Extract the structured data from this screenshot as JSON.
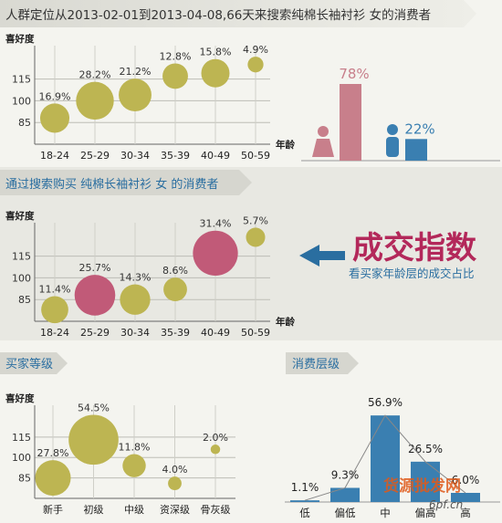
{
  "header1": {
    "title": "人群定位从2013-02-01到2013-04-08,66天来搜索纯棉长袖衬衫 女的消费者"
  },
  "header2": {
    "title": "通过搜索购买 纯棉长袖衬衫 女 的消费者"
  },
  "header3": {
    "title": "买家等级"
  },
  "header4": {
    "title": "消费层级"
  },
  "callout": {
    "title": "成交指数",
    "subtitle": "看买家年龄层的成交占比"
  },
  "watermark": {
    "line1": "货源批发网",
    "line2": "6pf.cn"
  },
  "chart_data": [
    {
      "type": "scatter",
      "name": "search-age",
      "ylabel": "喜好度",
      "xlabel": "年龄",
      "yticks": [
        "115",
        "100",
        "85"
      ],
      "categories": [
        "18-24",
        "25-29",
        "30-34",
        "35-39",
        "40-49",
        "50-59"
      ],
      "values": [
        16.9,
        28.2,
        21.2,
        12.8,
        15.8,
        4.9
      ],
      "labels": [
        "16.9%",
        "28.2%",
        "21.2%",
        "12.8%",
        "15.8%",
        "4.9%"
      ],
      "y": [
        88,
        100,
        104,
        117,
        119,
        125
      ],
      "ylim": [
        70,
        133
      ],
      "colors": [
        "#bdb552",
        "#bdb552",
        "#bdb552",
        "#bdb552",
        "#bdb552",
        "#bdb552"
      ]
    },
    {
      "type": "bar",
      "name": "gender",
      "categories": [
        "female",
        "male"
      ],
      "values": [
        78,
        22
      ],
      "labels": [
        "78%",
        "22%"
      ],
      "colors": [
        "#c87f8b",
        "#3a7fb1"
      ],
      "ylim": [
        0,
        100
      ]
    },
    {
      "type": "scatter",
      "name": "buy-age",
      "ylabel": "喜好度",
      "xlabel": "年龄",
      "yticks": [
        "115",
        "100",
        "85"
      ],
      "categories": [
        "18-24",
        "25-29",
        "30-34",
        "35-39",
        "40-49",
        "50-59"
      ],
      "values": [
        11.4,
        25.7,
        14.3,
        8.6,
        31.4,
        5.7
      ],
      "labels": [
        "11.4%",
        "25.7%",
        "14.3%",
        "8.6%",
        "31.4%",
        "5.7%"
      ],
      "y": [
        78,
        88,
        85,
        92,
        117,
        128
      ],
      "ylim": [
        70,
        133
      ],
      "colors": [
        "#bdb552",
        "#c15a78",
        "#bdb552",
        "#bdb552",
        "#c15a78",
        "#bdb552"
      ]
    },
    {
      "type": "scatter",
      "name": "buyer-level",
      "ylabel": "喜好度",
      "yticks": [
        "115",
        "100",
        "85"
      ],
      "categories": [
        "新手",
        "初级",
        "中级",
        "资深级",
        "骨灰级"
      ],
      "values": [
        27.8,
        54.5,
        11.8,
        4.0,
        2.0
      ],
      "labels": [
        "27.8%",
        "54.5%",
        "11.8%",
        "4.0%",
        "2.0%"
      ],
      "y": [
        85,
        113,
        94,
        81,
        106
      ],
      "ylim": [
        70,
        133
      ],
      "colors": [
        "#bdb552",
        "#bdb552",
        "#bdb552",
        "#bdb552",
        "#bdb552"
      ]
    },
    {
      "type": "bar",
      "name": "consumption-level",
      "categories": [
        "低",
        "偏低",
        "中",
        "偏高",
        "高"
      ],
      "values": [
        1.1,
        9.3,
        56.9,
        26.5,
        6.0
      ],
      "labels": [
        "1.1%",
        "9.3%",
        "56.9%",
        "26.5%",
        "6.0%"
      ],
      "colors": [
        "#3a7fb1",
        "#3a7fb1",
        "#3a7fb1",
        "#3a7fb1",
        "#3a7fb1"
      ],
      "ylim": [
        0,
        60
      ]
    }
  ]
}
